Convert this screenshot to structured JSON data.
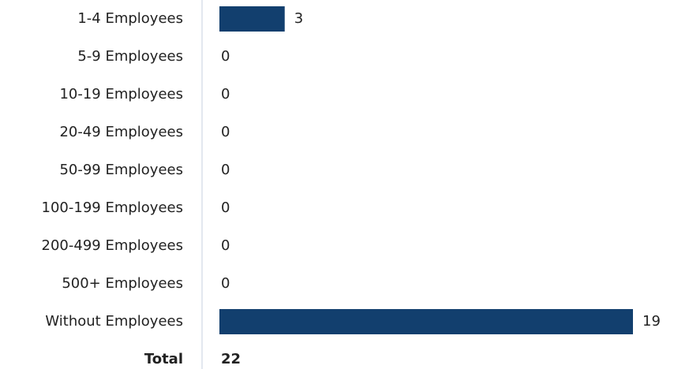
{
  "chart_data": {
    "type": "bar",
    "orientation": "horizontal",
    "categories": [
      "1-4 Employees",
      "5-9 Employees",
      "10-19 Employees",
      "20-49 Employees",
      "50-99 Employees",
      "100-199 Employees",
      "200-499 Employees",
      "500+ Employees",
      "Without Employees"
    ],
    "values": [
      3,
      0,
      0,
      0,
      0,
      0,
      0,
      0,
      19
    ],
    "color": "#123f6e",
    "total": {
      "label": "Total",
      "value": 22
    }
  }
}
